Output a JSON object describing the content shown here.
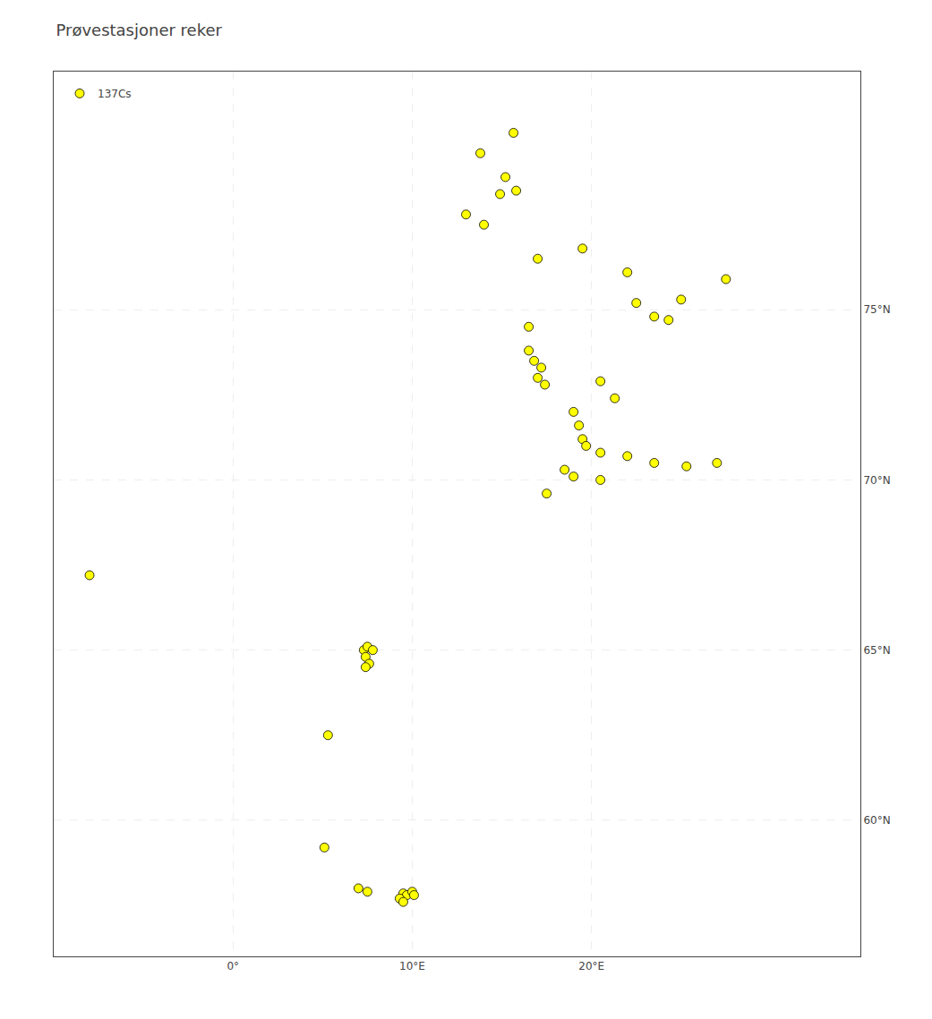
{
  "chart_data": {
    "type": "scatter",
    "title": "Prøvestasjoner reker",
    "series": [
      {
        "name": "137Cs",
        "color": "#FFFF00",
        "marker": "circle",
        "x": [
          15.65,
          13.8,
          15.2,
          15.8,
          14.9,
          13.0,
          14.0,
          19.5,
          17.0,
          22.0,
          27.5,
          25.0,
          22.5,
          23.5,
          24.3,
          16.5,
          16.5,
          16.8,
          17.2,
          17.0,
          17.4,
          20.5,
          21.3,
          19.0,
          19.3,
          19.5,
          19.7,
          20.5,
          22.0,
          23.5,
          25.3,
          27.0,
          18.5,
          19.0,
          20.5,
          17.5,
          -8.0,
          7.3,
          7.5,
          7.8,
          7.4,
          7.6,
          7.4,
          5.3,
          5.1,
          7.0,
          7.5,
          9.5,
          9.7,
          9.3,
          9.5,
          10.0,
          10.1
        ],
        "values": [
          80.2,
          79.6,
          78.9,
          78.5,
          78.4,
          77.8,
          77.5,
          76.8,
          76.5,
          76.1,
          75.9,
          75.3,
          75.2,
          74.8,
          74.7,
          74.5,
          73.8,
          73.5,
          73.3,
          73.0,
          72.8,
          72.9,
          72.4,
          72.0,
          71.6,
          71.2,
          71.0,
          70.8,
          70.7,
          70.5,
          70.4,
          70.5,
          70.3,
          70.1,
          70.0,
          69.6,
          67.2,
          65.0,
          65.1,
          65.0,
          64.8,
          64.6,
          64.5,
          62.5,
          59.2,
          58.0,
          57.9,
          57.85,
          57.8,
          57.7,
          57.6,
          57.9,
          57.8
        ]
      }
    ],
    "xlim": [
      -10,
      35
    ],
    "ylim": [
      56,
      82
    ],
    "xticks": [
      {
        "value": 0,
        "label": "0°"
      },
      {
        "value": 10,
        "label": "10°E"
      },
      {
        "value": 20,
        "label": "20°E"
      }
    ],
    "yticks": [
      {
        "value": 60,
        "label": "60°N"
      },
      {
        "value": 65,
        "label": "65°N"
      },
      {
        "value": 70,
        "label": "70°N"
      },
      {
        "value": 75,
        "label": "75°N"
      }
    ],
    "grid": true,
    "legend": "upper left"
  }
}
